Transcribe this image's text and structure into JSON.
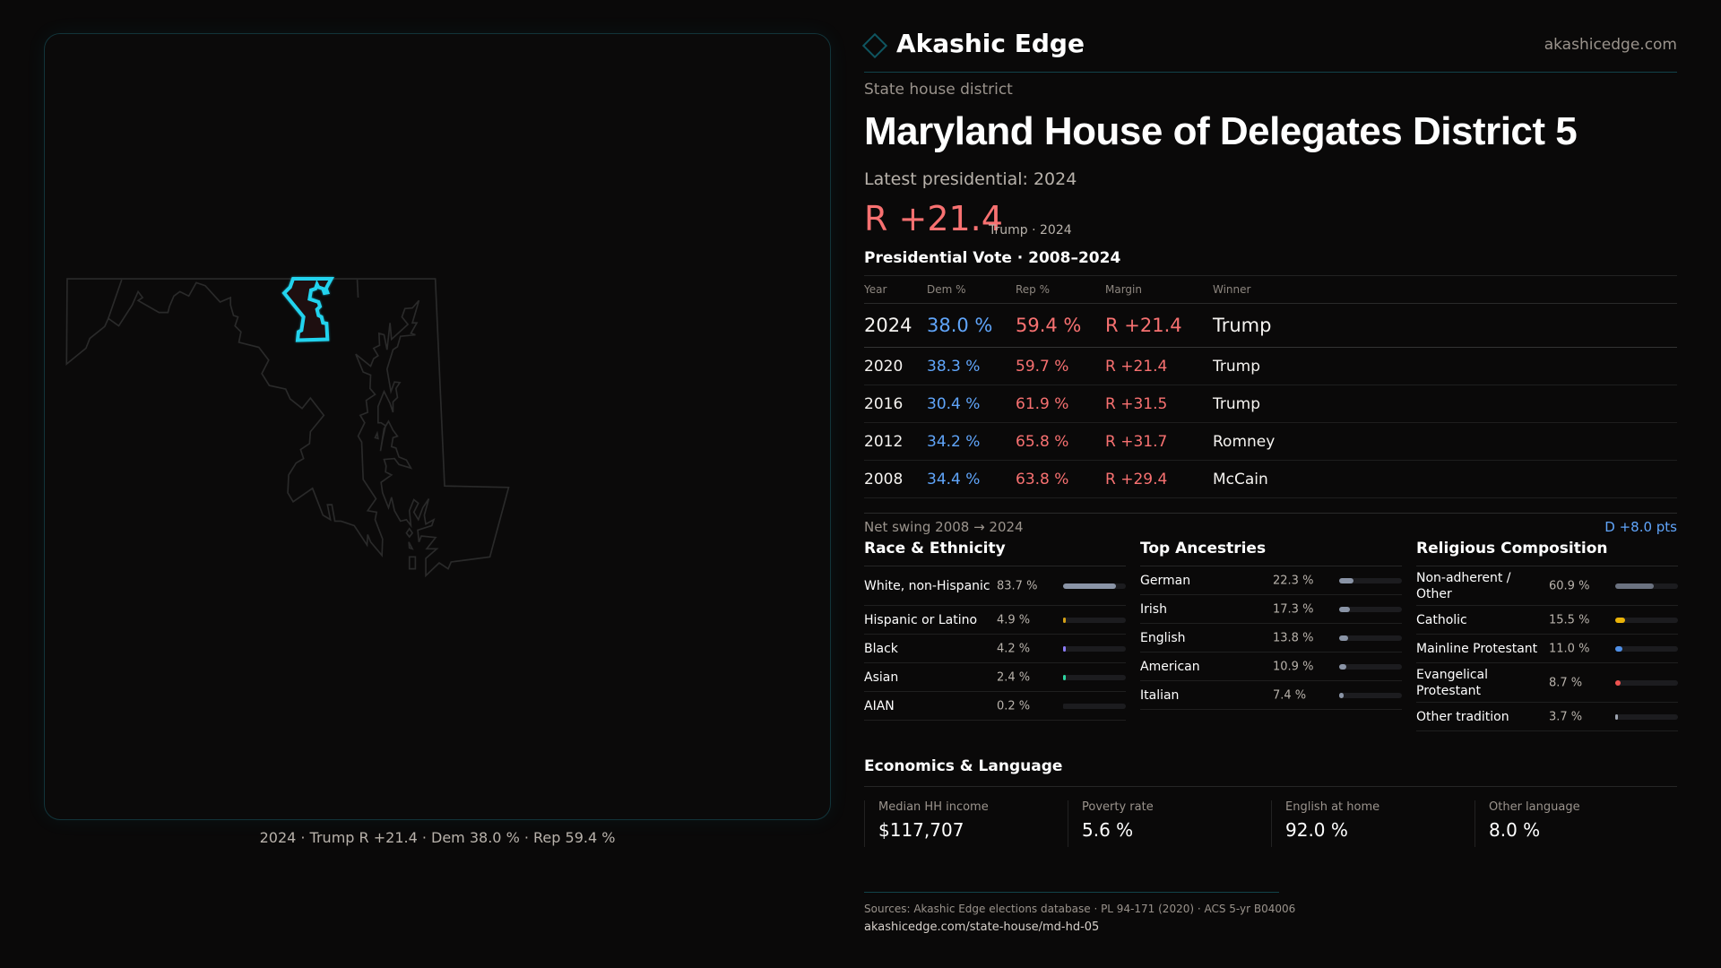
{
  "map": {
    "caption": "2024 · Trump R +21.4 · Dem 38.0 % · Rep 59.4 %",
    "highlight_color": "#22d3ee",
    "outline_color": "#2a2a2a"
  },
  "header": {
    "brand": "Akashic Edge",
    "site": "akashicedge.com",
    "logo_icon": "diamond-icon"
  },
  "district": {
    "kicker": "State house district",
    "title": "Maryland House of Delegates District 5",
    "latest_label": "Latest presidential: 2024",
    "margin": "R +21.4",
    "margin_sub": "Trump · 2024"
  },
  "vote_table": {
    "title": "Presidential Vote · 2008–2024",
    "headers": [
      "Year",
      "Dem %",
      "Rep %",
      "Margin",
      "Winner"
    ],
    "rows": [
      {
        "year": "2024",
        "dem": "38.0 %",
        "rep": "59.4 %",
        "margin": "R +21.4",
        "winner": "Trump"
      },
      {
        "year": "2020",
        "dem": "38.3 %",
        "rep": "59.7 %",
        "margin": "R +21.4",
        "winner": "Trump"
      },
      {
        "year": "2016",
        "dem": "30.4 %",
        "rep": "61.9 %",
        "margin": "R +31.5",
        "winner": "Trump"
      },
      {
        "year": "2012",
        "dem": "34.2 %",
        "rep": "65.8 %",
        "margin": "R +31.7",
        "winner": "Romney"
      },
      {
        "year": "2008",
        "dem": "34.4 %",
        "rep": "63.8 %",
        "margin": "R +29.4",
        "winner": "McCain"
      }
    ],
    "swing_label": "Net swing 2008 → 2024",
    "swing_value": "D +8.0 pts"
  },
  "sections": [
    {
      "title": "Race & Ethnicity",
      "items": [
        {
          "label": "White, non-Hispanic",
          "pct": "83.7 %",
          "value": 83.7,
          "color": "#8a94a6"
        },
        {
          "label": "Hispanic or Latino",
          "pct": "4.9 %",
          "value": 4.9,
          "color": "#d4a017"
        },
        {
          "label": "Black",
          "pct": "4.2 %",
          "value": 4.2,
          "color": "#8b7cf6"
        },
        {
          "label": "Asian",
          "pct": "2.4 %",
          "value": 2.4,
          "color": "#2dd4a0"
        },
        {
          "label": "AIAN",
          "pct": "0.2 %",
          "value": 0.2,
          "color": "#1c1c1f"
        }
      ]
    },
    {
      "title": "Top Ancestries",
      "items": [
        {
          "label": "German",
          "pct": "22.3 %",
          "value": 22.3,
          "color": "#8a94a6"
        },
        {
          "label": "Irish",
          "pct": "17.3 %",
          "value": 17.3,
          "color": "#8a94a6"
        },
        {
          "label": "English",
          "pct": "13.8 %",
          "value": 13.8,
          "color": "#8a94a6"
        },
        {
          "label": "American",
          "pct": "10.9 %",
          "value": 10.9,
          "color": "#8a94a6"
        },
        {
          "label": "Italian",
          "pct": "7.4 %",
          "value": 7.4,
          "color": "#8a94a6"
        }
      ]
    },
    {
      "title": "Religious Composition",
      "items": [
        {
          "label": "Non-adherent / Other",
          "pct": "60.9 %",
          "value": 60.9,
          "color": "#6b7280"
        },
        {
          "label": "Catholic",
          "pct": "15.5 %",
          "value": 15.5,
          "color": "#eab308"
        },
        {
          "label": "Mainline Protestant",
          "pct": "11.0 %",
          "value": 11.0,
          "color": "#4f8fe6"
        },
        {
          "label": "Evangelical Protestant",
          "pct": "8.7 %",
          "value": 8.7,
          "color": "#ef5350"
        },
        {
          "label": "Other tradition",
          "pct": "3.7 %",
          "value": 3.7,
          "color": "#9ca3af"
        }
      ]
    }
  ],
  "economics": {
    "title": "Economics & Language",
    "cards": [
      {
        "label": "Median HH income",
        "value": "$117,707"
      },
      {
        "label": "Poverty rate",
        "value": "5.6 %"
      },
      {
        "label": "English at home",
        "value": "92.0 %"
      },
      {
        "label": "Other language",
        "value": "8.0 %"
      }
    ]
  },
  "footer": {
    "sources": "Sources: Akashic Edge elections database · PL 94-171 (2020) · ACS 5-yr B04006",
    "url": "akashicedge.com/state-house/md-hd-05"
  }
}
